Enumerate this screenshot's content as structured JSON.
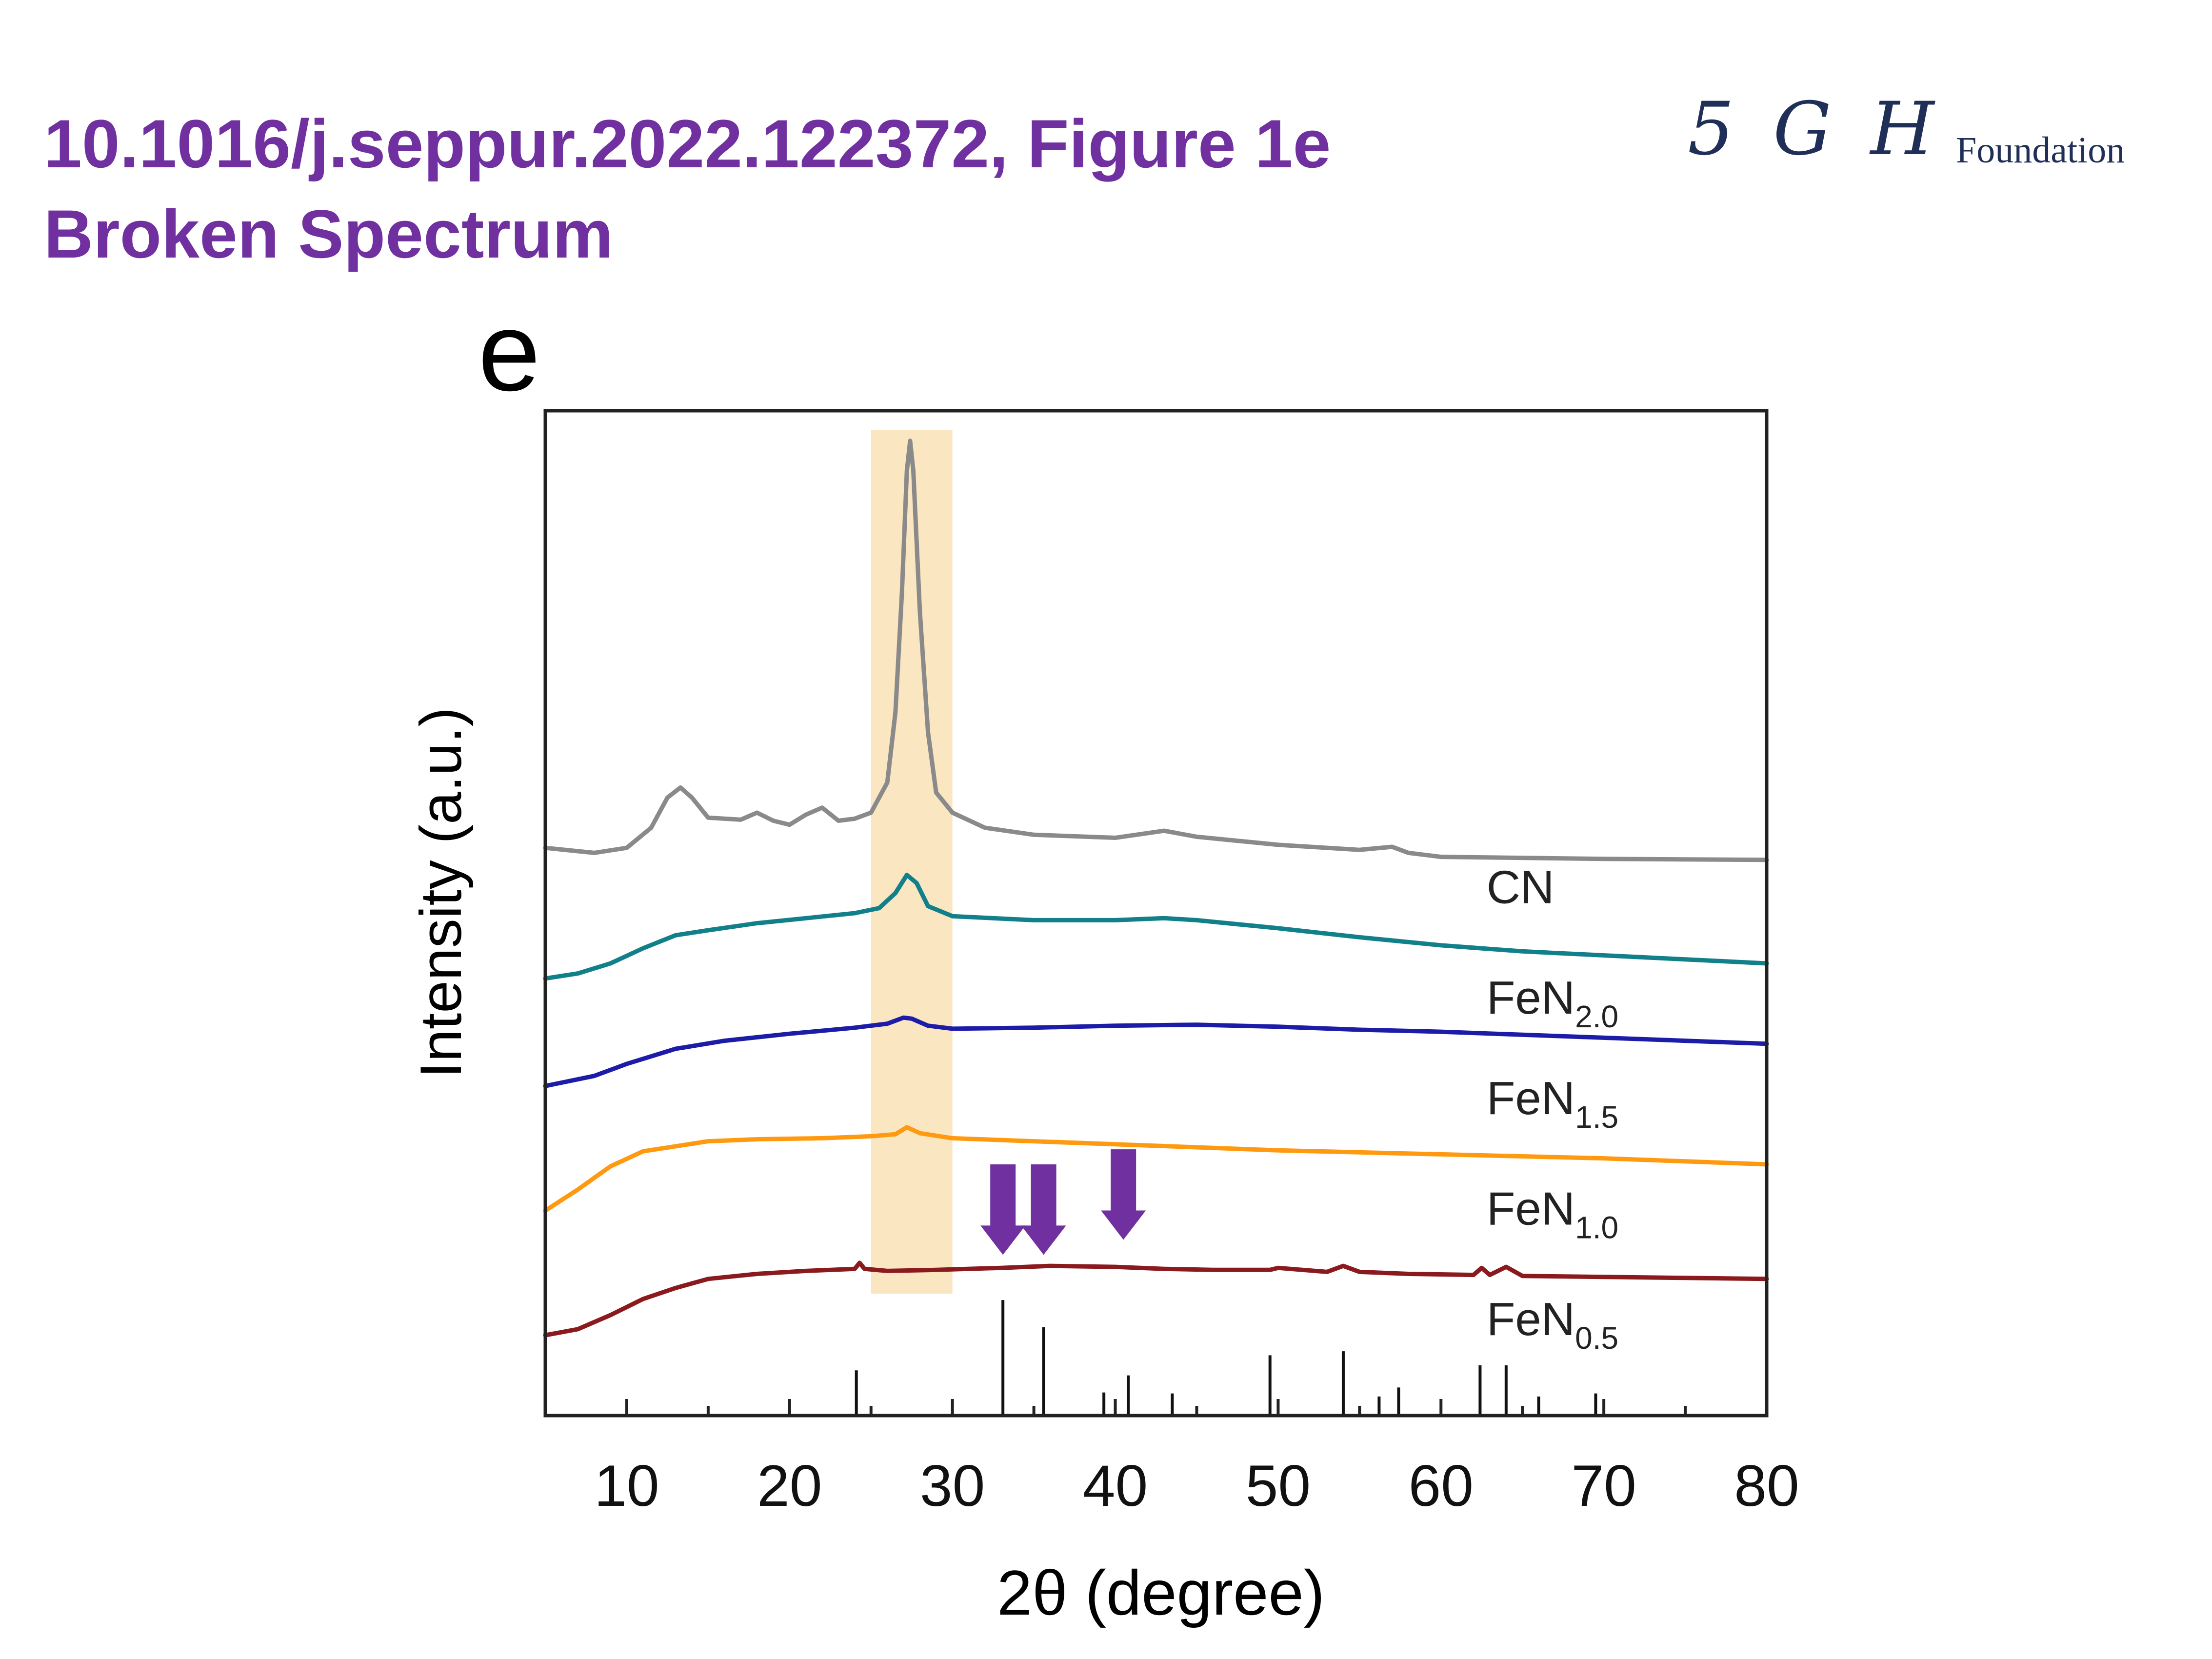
{
  "header": {
    "title_line1": "10.1016/j.seppur.2022.122372, Figure 1e",
    "title_line2": "Broken Spectrum"
  },
  "logo": {
    "mark": "5 G H",
    "word": "Foundation"
  },
  "colors": {
    "title": "#7030a0",
    "arrow": "#7030a0",
    "highlight_band": "#fbe6c2",
    "series": [
      "#8a8a8a",
      "#12808a",
      "#1c1ca8",
      "#ff9a10",
      "#8b1a1e"
    ]
  },
  "chart_data": {
    "type": "line",
    "panel_label": "e",
    "xlabel": "2θ (degree)",
    "ylabel": "Intensity (a.u.)",
    "xlim": [
      5,
      80
    ],
    "ylim": [
      0,
      100
    ],
    "xticks": [
      10,
      20,
      30,
      40,
      50,
      60,
      70,
      80
    ],
    "highlight_band": [
      25,
      30
    ],
    "series": [
      {
        "name": "CN",
        "label_main": "CN",
        "label_sub": "",
        "label_x": 62.8,
        "label_y": 51,
        "points": [
          [
            5,
            56.5
          ],
          [
            8,
            56.0
          ],
          [
            10,
            56.5
          ],
          [
            11.5,
            58.5
          ],
          [
            12.5,
            61.5
          ],
          [
            13.3,
            62.5
          ],
          [
            14,
            61.5
          ],
          [
            15,
            59.5
          ],
          [
            17,
            59.3
          ],
          [
            18,
            60.0
          ],
          [
            19,
            59.2
          ],
          [
            20,
            58.8
          ],
          [
            21,
            59.8
          ],
          [
            22,
            60.5
          ],
          [
            23,
            59.2
          ],
          [
            24,
            59.4
          ],
          [
            25,
            60.0
          ],
          [
            26,
            63.0
          ],
          [
            26.5,
            70.0
          ],
          [
            26.9,
            82.0
          ],
          [
            27.2,
            94.0
          ],
          [
            27.4,
            97.0
          ],
          [
            27.6,
            94.0
          ],
          [
            28,
            80.0
          ],
          [
            28.5,
            68.0
          ],
          [
            29,
            62.0
          ],
          [
            30,
            60.0
          ],
          [
            32,
            58.5
          ],
          [
            35,
            57.8
          ],
          [
            40,
            57.5
          ],
          [
            43,
            58.2
          ],
          [
            45,
            57.6
          ],
          [
            50,
            56.8
          ],
          [
            55,
            56.3
          ],
          [
            57,
            56.6
          ],
          [
            58,
            56.0
          ],
          [
            60,
            55.6
          ],
          [
            70,
            55.4
          ],
          [
            80,
            55.3
          ]
        ]
      },
      {
        "name": "FeN2.0",
        "label_main": "FeN",
        "label_sub": "2.0",
        "label_x": 62.8,
        "label_y": 40,
        "points": [
          [
            5,
            43.5
          ],
          [
            7,
            44.0
          ],
          [
            9,
            45.0
          ],
          [
            11,
            46.5
          ],
          [
            13,
            47.8
          ],
          [
            15,
            48.3
          ],
          [
            18,
            49.0
          ],
          [
            21,
            49.5
          ],
          [
            24,
            50.0
          ],
          [
            25.5,
            50.5
          ],
          [
            26.5,
            52.0
          ],
          [
            27.2,
            53.8
          ],
          [
            27.8,
            53.0
          ],
          [
            28.5,
            50.7
          ],
          [
            30,
            49.7
          ],
          [
            35,
            49.3
          ],
          [
            40,
            49.3
          ],
          [
            43,
            49.5
          ],
          [
            45,
            49.3
          ],
          [
            50,
            48.5
          ],
          [
            55,
            47.6
          ],
          [
            60,
            46.8
          ],
          [
            65,
            46.2
          ],
          [
            70,
            45.8
          ],
          [
            75,
            45.4
          ],
          [
            80,
            45.0
          ]
        ]
      },
      {
        "name": "FeN1.5",
        "label_main": "FeN",
        "label_sub": "1.5",
        "label_x": 62.8,
        "label_y": 30,
        "points": [
          [
            5,
            32.8
          ],
          [
            8,
            33.8
          ],
          [
            10,
            35.0
          ],
          [
            13,
            36.5
          ],
          [
            16,
            37.3
          ],
          [
            20,
            38.0
          ],
          [
            24,
            38.6
          ],
          [
            26,
            39.0
          ],
          [
            27,
            39.6
          ],
          [
            27.5,
            39.5
          ],
          [
            28.5,
            38.8
          ],
          [
            30,
            38.5
          ],
          [
            35,
            38.6
          ],
          [
            40,
            38.8
          ],
          [
            45,
            38.9
          ],
          [
            50,
            38.7
          ],
          [
            55,
            38.4
          ],
          [
            60,
            38.2
          ],
          [
            65,
            37.9
          ],
          [
            70,
            37.6
          ],
          [
            75,
            37.3
          ],
          [
            80,
            37.0
          ]
        ]
      },
      {
        "name": "FeN1.0",
        "label_main": "FeN",
        "label_sub": "1.0",
        "label_x": 62.8,
        "label_y": 19,
        "points": [
          [
            5,
            20.4
          ],
          [
            7,
            22.5
          ],
          [
            9,
            24.8
          ],
          [
            11,
            26.3
          ],
          [
            13,
            26.8
          ],
          [
            15,
            27.3
          ],
          [
            18,
            27.5
          ],
          [
            22,
            27.6
          ],
          [
            25,
            27.8
          ],
          [
            26.5,
            28.0
          ],
          [
            27.2,
            28.7
          ],
          [
            28,
            28.1
          ],
          [
            30,
            27.6
          ],
          [
            35,
            27.3
          ],
          [
            40,
            27.0
          ],
          [
            45,
            26.7
          ],
          [
            50,
            26.4
          ],
          [
            55,
            26.2
          ],
          [
            60,
            26.0
          ],
          [
            65,
            25.8
          ],
          [
            70,
            25.6
          ],
          [
            75,
            25.3
          ],
          [
            80,
            25.0
          ]
        ]
      },
      {
        "name": "FeN0.5",
        "label_main": "FeN",
        "label_sub": "0.5",
        "label_x": 62.8,
        "label_y": 8,
        "points": [
          [
            5,
            8.0
          ],
          [
            7,
            8.6
          ],
          [
            9,
            10.0
          ],
          [
            11,
            11.6
          ],
          [
            13,
            12.7
          ],
          [
            15,
            13.6
          ],
          [
            18,
            14.1
          ],
          [
            21,
            14.4
          ],
          [
            24,
            14.6
          ],
          [
            24.3,
            15.2
          ],
          [
            24.6,
            14.6
          ],
          [
            26,
            14.4
          ],
          [
            29,
            14.5
          ],
          [
            33,
            14.7
          ],
          [
            36,
            14.9
          ],
          [
            40,
            14.8
          ],
          [
            43,
            14.6
          ],
          [
            46,
            14.5
          ],
          [
            49.5,
            14.5
          ],
          [
            50,
            14.7
          ],
          [
            53,
            14.3
          ],
          [
            54,
            14.9
          ],
          [
            55,
            14.3
          ],
          [
            58,
            14.1
          ],
          [
            62,
            14.0
          ],
          [
            62.5,
            14.7
          ],
          [
            63,
            14.0
          ],
          [
            64,
            14.8
          ],
          [
            65,
            13.9
          ],
          [
            70,
            13.8
          ],
          [
            75,
            13.7
          ],
          [
            80,
            13.6
          ]
        ]
      }
    ],
    "reference_sticks": [
      {
        "x": 24.1,
        "h": 4.5
      },
      {
        "x": 33.1,
        "h": 11.5
      },
      {
        "x": 35.6,
        "h": 8.8
      },
      {
        "x": 39.3,
        "h": 2.3
      },
      {
        "x": 40.8,
        "h": 4.0
      },
      {
        "x": 43.5,
        "h": 2.2
      },
      {
        "x": 49.5,
        "h": 6.0
      },
      {
        "x": 54.0,
        "h": 6.4
      },
      {
        "x": 56.2,
        "h": 1.9
      },
      {
        "x": 57.4,
        "h": 2.8
      },
      {
        "x": 62.4,
        "h": 5.0
      },
      {
        "x": 64.0,
        "h": 5.0
      },
      {
        "x": 66.0,
        "h": 1.9
      },
      {
        "x": 69.5,
        "h": 2.2
      }
    ],
    "arrows": [
      {
        "x": 33.1,
        "y_top": 25.0,
        "y_bottom": 16.0
      },
      {
        "x": 35.6,
        "y_top": 25.0,
        "y_bottom": 16.0
      },
      {
        "x": 40.5,
        "y_top": 26.5,
        "y_bottom": 17.5
      }
    ]
  }
}
